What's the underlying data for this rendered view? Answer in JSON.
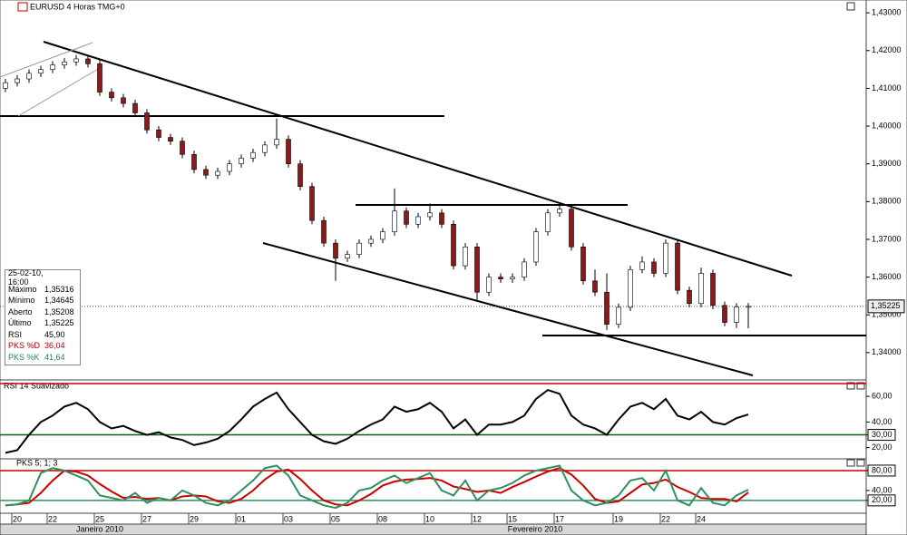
{
  "chart_data": [
    {
      "type": "candlestick",
      "title": "EURUSD 4 Horas TMG+0",
      "open": [
        1.41,
        1.4115,
        1.4125,
        1.414,
        1.415,
        1.4162,
        1.417,
        1.4178,
        1.4165,
        1.409,
        1.4075,
        1.406,
        1.4035,
        1.399,
        1.397,
        1.396,
        1.3925,
        1.3885,
        1.387,
        1.388,
        1.39,
        1.3915,
        1.393,
        1.395,
        1.3965,
        1.39,
        1.384,
        1.375,
        1.369,
        1.365,
        1.366,
        1.369,
        1.37,
        1.372,
        1.3775,
        1.374,
        1.376,
        1.377,
        1.374,
        1.363,
        1.368,
        1.356,
        1.36,
        1.3595,
        1.36,
        1.364,
        1.372,
        1.377,
        1.378,
        1.368,
        1.359,
        1.356,
        1.3475,
        1.352,
        1.362,
        1.364,
        1.361,
        1.369,
        1.3565,
        1.353,
        1.361,
        1.3525,
        1.348,
        1.35208
      ],
      "high": [
        1.4125,
        1.4135,
        1.415,
        1.416,
        1.4172,
        1.418,
        1.4188,
        1.4188,
        1.4175,
        1.41,
        1.4085,
        1.407,
        1.4045,
        1.4,
        1.398,
        1.397,
        1.3935,
        1.3895,
        1.389,
        1.391,
        1.3925,
        1.394,
        1.396,
        1.402,
        1.3975,
        1.391,
        1.385,
        1.376,
        1.37,
        1.367,
        1.37,
        1.371,
        1.373,
        1.3835,
        1.3785,
        1.377,
        1.3795,
        1.378,
        1.375,
        1.369,
        1.369,
        1.361,
        1.361,
        1.361,
        1.365,
        1.373,
        1.378,
        1.379,
        1.379,
        1.369,
        1.362,
        1.361,
        1.353,
        1.363,
        1.3655,
        1.365,
        1.37,
        1.37,
        1.3575,
        1.3625,
        1.362,
        1.3535,
        1.3531,
        1.35316
      ],
      "low": [
        1.409,
        1.4105,
        1.4115,
        1.413,
        1.414,
        1.4152,
        1.416,
        1.4155,
        1.408,
        1.4065,
        1.405,
        1.4025,
        1.398,
        1.396,
        1.395,
        1.3915,
        1.3875,
        1.386,
        1.386,
        1.387,
        1.389,
        1.3905,
        1.392,
        1.394,
        1.389,
        1.383,
        1.374,
        1.368,
        1.359,
        1.364,
        1.365,
        1.368,
        1.369,
        1.371,
        1.373,
        1.373,
        1.375,
        1.373,
        1.362,
        1.362,
        1.354,
        1.355,
        1.3585,
        1.3585,
        1.359,
        1.363,
        1.371,
        1.376,
        1.367,
        1.358,
        1.355,
        1.346,
        1.3465,
        1.351,
        1.361,
        1.36,
        1.36,
        1.3555,
        1.352,
        1.352,
        1.3515,
        1.347,
        1.3465,
        1.34645
      ],
      "close": [
        1.4115,
        1.4125,
        1.414,
        1.415,
        1.4162,
        1.417,
        1.4178,
        1.4165,
        1.409,
        1.4075,
        1.406,
        1.4035,
        1.399,
        1.397,
        1.396,
        1.3925,
        1.3885,
        1.387,
        1.388,
        1.39,
        1.3915,
        1.393,
        1.395,
        1.3965,
        1.39,
        1.384,
        1.375,
        1.369,
        1.365,
        1.366,
        1.369,
        1.37,
        1.372,
        1.3775,
        1.374,
        1.376,
        1.377,
        1.374,
        1.363,
        1.368,
        1.356,
        1.36,
        1.3595,
        1.36,
        1.364,
        1.372,
        1.377,
        1.378,
        1.368,
        1.359,
        1.356,
        1.3475,
        1.352,
        1.362,
        1.364,
        1.361,
        1.369,
        1.3565,
        1.353,
        1.361,
        1.3525,
        1.348,
        1.3521,
        1.35225
      ],
      "up_color": "#ffffff",
      "down_color": "#8b1a1a",
      "ylim": [
        1.333,
        1.4334
      ],
      "yticks": [
        {
          "value": 1.34,
          "label": "1,34000"
        },
        {
          "value": 1.35,
          "label": "1,35000"
        },
        {
          "value": 1.36,
          "label": "1,36000"
        },
        {
          "value": 1.37,
          "label": "1,37000"
        },
        {
          "value": 1.38,
          "label": "1,38000"
        },
        {
          "value": 1.39,
          "label": "1,39000"
        },
        {
          "value": 1.4,
          "label": "1,40000"
        },
        {
          "value": 1.41,
          "label": "1,41000"
        },
        {
          "value": 1.42,
          "label": "1,42000"
        },
        {
          "value": 1.43,
          "label": "1,43000"
        }
      ],
      "last_label": "1,35225"
    },
    {
      "type": "line",
      "title": "RSI 14 Suavizado",
      "series": [
        {
          "name": "RSI",
          "color": "#000000",
          "last_label": "45,90",
          "values": [
            16,
            18,
            30,
            40,
            45,
            52,
            55,
            50,
            40,
            35,
            37,
            33,
            30,
            32,
            28,
            26,
            22,
            24,
            27,
            33,
            42,
            52,
            58,
            63,
            50,
            40,
            30,
            25,
            23,
            27,
            33,
            38,
            42,
            52,
            48,
            50,
            55,
            48,
            35,
            42,
            30,
            38,
            38,
            40,
            45,
            58,
            65,
            62,
            45,
            38,
            35,
            30,
            42,
            52,
            55,
            50,
            58,
            45,
            42,
            48,
            40,
            38,
            43,
            45.9
          ]
        }
      ],
      "levels": [
        {
          "value": 70,
          "color": "#cc0000"
        },
        {
          "value": 30,
          "color": "#006600"
        }
      ],
      "ylim": [
        12,
        70
      ],
      "yticks": [
        {
          "value": 20,
          "label": "20,00"
        },
        {
          "value": 30,
          "label": "30,00"
        },
        {
          "value": 40,
          "label": "40,00"
        },
        {
          "value": 60,
          "label": "60,00"
        }
      ]
    },
    {
      "type": "line",
      "title": "PKS 5; 1; 3",
      "series": [
        {
          "name": "PKS %D",
          "color": "#cc0000",
          "last_label": "36,04",
          "values": [
            10,
            12,
            15,
            35,
            60,
            80,
            78,
            70,
            53,
            38,
            25,
            27,
            23,
            25,
            20,
            28,
            30,
            28,
            18,
            15,
            23,
            40,
            62,
            78,
            82,
            63,
            40,
            20,
            12,
            10,
            20,
            33,
            50,
            58,
            62,
            63,
            65,
            60,
            48,
            43,
            37,
            40,
            35,
            47,
            57,
            68,
            78,
            85,
            72,
            50,
            23,
            15,
            18,
            35,
            52,
            55,
            62,
            47,
            37,
            25,
            23,
            23,
            18,
            36.04
          ]
        },
        {
          "name": "PKS %K",
          "color": "#2f8f5f",
          "last_label": "41,64",
          "values": [
            10,
            12,
            20,
            75,
            85,
            80,
            70,
            60,
            30,
            25,
            20,
            35,
            15,
            25,
            20,
            40,
            30,
            15,
            10,
            20,
            40,
            60,
            85,
            90,
            70,
            30,
            20,
            10,
            5,
            15,
            40,
            45,
            60,
            70,
            55,
            65,
            75,
            40,
            30,
            60,
            20,
            40,
            45,
            55,
            70,
            80,
            85,
            90,
            40,
            20,
            10,
            15,
            30,
            60,
            65,
            40,
            80,
            20,
            10,
            45,
            15,
            10,
            30,
            41.64
          ]
        }
      ],
      "levels": [
        {
          "value": 80,
          "color": "#cc0000"
        },
        {
          "value": 20,
          "color": "#2f8f5f"
        }
      ],
      "ylim": [
        -4,
        100
      ],
      "yticks": [
        {
          "value": 20,
          "label": "20,00"
        },
        {
          "value": 40,
          "label": "40,00"
        },
        {
          "value": 80,
          "label": "80,00"
        }
      ],
      "categories": [
        null,
        "20",
        null,
        null,
        "22",
        null,
        null,
        null,
        "25",
        null,
        null,
        null,
        "27",
        null,
        null,
        null,
        "29",
        null,
        null,
        null,
        "01",
        null,
        null,
        null,
        "03",
        null,
        null,
        null,
        "05",
        null,
        null,
        null,
        "08",
        null,
        null,
        null,
        "10",
        null,
        null,
        null,
        "12",
        null,
        null,
        "15",
        null,
        null,
        null,
        "17",
        null,
        null,
        null,
        null,
        "19",
        null,
        null,
        null,
        "22",
        null,
        null,
        "24",
        null,
        null,
        null,
        null
      ],
      "x_group_labels": [
        "Janeiro 2010",
        "Fevereiro 2010"
      ]
    }
  ],
  "info_box": {
    "date": "25-02-10, 16:00",
    "rows": [
      {
        "label": "Máximo",
        "value": "1,35316"
      },
      {
        "label": "Mínimo",
        "value": "1,34645"
      },
      {
        "label": "Aberto",
        "value": "1,35208"
      },
      {
        "label": "Último",
        "value": "1,35225"
      }
    ]
  }
}
